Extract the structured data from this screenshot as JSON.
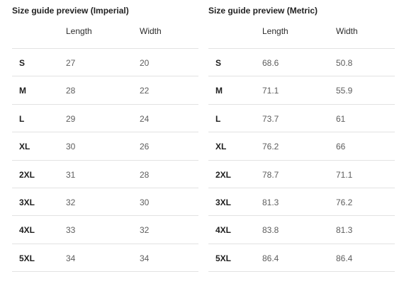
{
  "imperial": {
    "title": "Size guide preview (Imperial)",
    "headers": {
      "length": "Length",
      "width": "Width"
    },
    "rows": [
      {
        "size": "S",
        "length": "27",
        "width": "20"
      },
      {
        "size": "M",
        "length": "28",
        "width": "22"
      },
      {
        "size": "L",
        "length": "29",
        "width": "24"
      },
      {
        "size": "XL",
        "length": "30",
        "width": "26"
      },
      {
        "size": "2XL",
        "length": "31",
        "width": "28"
      },
      {
        "size": "3XL",
        "length": "32",
        "width": "30"
      },
      {
        "size": "4XL",
        "length": "33",
        "width": "32"
      },
      {
        "size": "5XL",
        "length": "34",
        "width": "34"
      }
    ]
  },
  "metric": {
    "title": "Size guide preview (Metric)",
    "headers": {
      "length": "Length",
      "width": "Width"
    },
    "rows": [
      {
        "size": "S",
        "length": "68.6",
        "width": "50.8"
      },
      {
        "size": "M",
        "length": "71.1",
        "width": "55.9"
      },
      {
        "size": "L",
        "length": "73.7",
        "width": "61"
      },
      {
        "size": "XL",
        "length": "76.2",
        "width": "66"
      },
      {
        "size": "2XL",
        "length": "78.7",
        "width": "71.1"
      },
      {
        "size": "3XL",
        "length": "81.3",
        "width": "76.2"
      },
      {
        "size": "4XL",
        "length": "83.8",
        "width": "81.3"
      },
      {
        "size": "5XL",
        "length": "86.4",
        "width": "86.4"
      }
    ]
  }
}
